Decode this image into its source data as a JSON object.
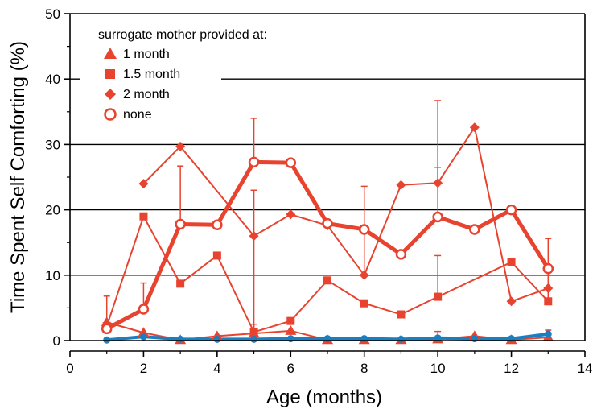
{
  "chart_data": {
    "type": "line",
    "xlabel": "Age (months)",
    "ylabel": "Time Spent Self Comforting (%)",
    "xlim": [
      0,
      14
    ],
    "ylim": [
      0,
      50
    ],
    "xticks": [
      0,
      2,
      4,
      6,
      8,
      10,
      12,
      14
    ],
    "yticks": [
      0,
      10,
      20,
      30,
      40,
      50
    ],
    "grid": "horizontal",
    "legend": {
      "title": "surrogate mother provided at:",
      "placement": "top-left"
    },
    "series": [
      {
        "name": "1 month",
        "marker": "triangle",
        "color": "#e8432f",
        "x": [
          1,
          2,
          3,
          4,
          5,
          6,
          7,
          8,
          9,
          10,
          11,
          12,
          13
        ],
        "y": [
          2.8,
          1.2,
          0.1,
          0.7,
          1.1,
          1.5,
          0.1,
          0.1,
          0.1,
          0.2,
          0.7,
          0.1,
          0.5
        ],
        "error_high": [
          6.8,
          null,
          null,
          null,
          2.5,
          null,
          null,
          null,
          null,
          1.4,
          null,
          null,
          1.6
        ]
      },
      {
        "name": "1.5 month",
        "marker": "square",
        "color": "#e8432f",
        "x": [
          1,
          2,
          3,
          4,
          5,
          6,
          7,
          8,
          9,
          10,
          11,
          12,
          13
        ],
        "y": [
          2.2,
          19,
          8.7,
          13,
          1.3,
          3,
          9.2,
          5.7,
          4,
          6.7,
          null,
          12,
          6
        ],
        "error_high": [
          null,
          null,
          null,
          null,
          23,
          null,
          null,
          null,
          null,
          13,
          null,
          null,
          15.6
        ]
      },
      {
        "name": "2 month",
        "marker": "diamond",
        "color": "#e8432f",
        "x": [
          2,
          3,
          5,
          6,
          7,
          8,
          9,
          10,
          11,
          12,
          13
        ],
        "y": [
          24,
          29.7,
          16,
          19.3,
          17.6,
          10,
          23.8,
          24.1,
          32.6,
          6,
          8
        ],
        "error_high": [
          null,
          null,
          null,
          null,
          null,
          23.6,
          null,
          26.5,
          null,
          null,
          null
        ]
      },
      {
        "name": "none",
        "marker": "open-circle",
        "color": "#e8432f",
        "x": [
          1,
          2,
          3,
          4,
          5,
          6,
          7,
          8,
          9,
          10,
          11,
          12,
          13
        ],
        "y": [
          1.8,
          4.8,
          17.8,
          17.7,
          27.3,
          27.2,
          17.9,
          17,
          13.2,
          18.9,
          17,
          20,
          11
        ],
        "error_high": [
          null,
          8.8,
          26.7,
          null,
          34,
          null,
          null,
          null,
          null,
          36.7,
          null,
          null,
          null
        ]
      },
      {
        "name": "",
        "marker": "circle",
        "color": "#1a7fc1",
        "x": [
          1,
          2,
          3,
          4,
          5,
          6,
          7,
          8,
          9,
          10,
          11,
          12,
          13
        ],
        "y": [
          0.1,
          0.6,
          0.2,
          0.2,
          0.2,
          0.3,
          0.3,
          0.3,
          0.2,
          0.4,
          0.3,
          0.3,
          1
        ]
      }
    ]
  }
}
